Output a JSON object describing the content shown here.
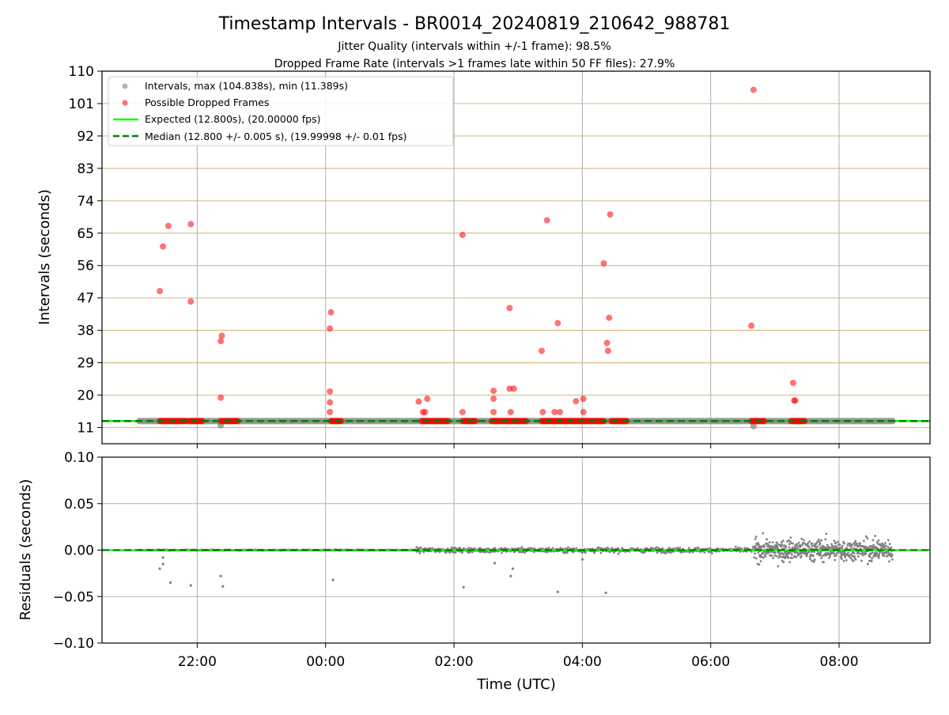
{
  "title": "Timestamp Intervals - BR0014_20240819_210642_988781",
  "subtitle_1": "Jitter Quality (intervals within +/-1 frame): 98.5%",
  "subtitle_2": "Dropped Frame Rate (intervals >1 frames late within 50 FF files): 27.9%",
  "colors": {
    "intervals": "#808080",
    "dropped": "#ff0000",
    "expected": "#00ff00",
    "median": "#008000",
    "top_grid": "#d4c08a",
    "grid": "#b0b0b0"
  },
  "chart_data": [
    {
      "type": "scatter",
      "panel": "intervals",
      "xlabel": "",
      "ylabel": "Intervals (seconds)",
      "ylim": [
        6.5,
        110
      ],
      "yticks": [
        11,
        20,
        29,
        38,
        47,
        56,
        65,
        74,
        83,
        92,
        101,
        110
      ],
      "xlim": [
        "20:31",
        "09:25"
      ],
      "xticks": [
        "22:00",
        "00:00",
        "02:00",
        "04:00",
        "06:00",
        "08:00"
      ],
      "grid": "horizontal lines at y ticks (tan), vertical lines at x ticks (gray)",
      "legend_position": "top-left",
      "legend": [
        "Intervals, max (104.838s), min (11.389s)",
        "Possible Dropped Frames",
        "Expected (12.800s), (20.00000 fps)",
        "Median (12.800 +/- 0.005 s), (19.99998 +/- 0.01 fps)"
      ],
      "expected_interval": 12.8,
      "median_interval": 12.8,
      "interval_time_span": [
        "21:06",
        "08:50"
      ],
      "dropped_cluster_spans": [
        [
          "21:25",
          "21:35"
        ],
        [
          "21:35",
          "21:50"
        ],
        [
          "21:52",
          "22:05"
        ],
        [
          "22:22",
          "22:38"
        ],
        [
          "00:05",
          "00:15"
        ],
        [
          "01:30",
          "01:40"
        ],
        [
          "01:40",
          "01:55"
        ],
        [
          "02:08",
          "02:20"
        ],
        [
          "02:35",
          "02:50"
        ],
        [
          "02:50",
          "03:08"
        ],
        [
          "03:22",
          "03:42"
        ],
        [
          "03:42",
          "04:00"
        ],
        [
          "04:00",
          "04:20"
        ],
        [
          "04:27",
          "04:42"
        ],
        [
          "06:38",
          "06:50"
        ],
        [
          "07:15",
          "07:28"
        ]
      ],
      "dropped_points": [
        {
          "x": "21:25",
          "y": 48.9
        },
        {
          "x": "21:28",
          "y": 61.3
        },
        {
          "x": "21:33",
          "y": 67.0
        },
        {
          "x": "21:54",
          "y": 67.5
        },
        {
          "x": "21:54",
          "y": 46.0
        },
        {
          "x": "22:22",
          "y": 19.3
        },
        {
          "x": "22:22",
          "y": 35.0
        },
        {
          "x": "22:23",
          "y": 36.5
        },
        {
          "x": "00:04",
          "y": 38.5
        },
        {
          "x": "00:05",
          "y": 43.0
        },
        {
          "x": "00:04",
          "y": 21.0
        },
        {
          "x": "00:04",
          "y": 18.0
        },
        {
          "x": "00:04",
          "y": 15.3
        },
        {
          "x": "01:27",
          "y": 18.2
        },
        {
          "x": "01:31",
          "y": 15.3
        },
        {
          "x": "01:33",
          "y": 15.3
        },
        {
          "x": "01:35",
          "y": 19.0
        },
        {
          "x": "02:08",
          "y": 64.5
        },
        {
          "x": "02:08",
          "y": 15.3
        },
        {
          "x": "02:37",
          "y": 21.2
        },
        {
          "x": "02:37",
          "y": 19.0
        },
        {
          "x": "02:37",
          "y": 15.3
        },
        {
          "x": "02:52",
          "y": 44.2
        },
        {
          "x": "02:52",
          "y": 21.8
        },
        {
          "x": "02:56",
          "y": 21.8
        },
        {
          "x": "02:53",
          "y": 15.3
        },
        {
          "x": "03:22",
          "y": 32.3
        },
        {
          "x": "03:23",
          "y": 15.3
        },
        {
          "x": "03:27",
          "y": 68.6
        },
        {
          "x": "03:34",
          "y": 15.3
        },
        {
          "x": "03:37",
          "y": 40.0
        },
        {
          "x": "03:39",
          "y": 15.3
        },
        {
          "x": "03:54",
          "y": 18.3
        },
        {
          "x": "04:01",
          "y": 19.0
        },
        {
          "x": "04:01",
          "y": 15.3
        },
        {
          "x": "04:20",
          "y": 56.6
        },
        {
          "x": "04:23",
          "y": 34.5
        },
        {
          "x": "04:24",
          "y": 32.3
        },
        {
          "x": "04:25",
          "y": 41.5
        },
        {
          "x": "04:26",
          "y": 70.2
        },
        {
          "x": "06:38",
          "y": 39.3
        },
        {
          "x": "06:40",
          "y": 104.8
        },
        {
          "x": "07:17",
          "y": 23.4
        },
        {
          "x": "07:18",
          "y": 18.5
        },
        {
          "x": "07:19",
          "y": 18.5
        }
      ],
      "low_interval_points": [
        {
          "x": "22:22",
          "y": 11.6
        },
        {
          "x": "06:40",
          "y": 11.389
        }
      ]
    },
    {
      "type": "scatter",
      "panel": "residuals",
      "xlabel": "Time (UTC)",
      "ylabel": "Residuals (seconds)",
      "ylim": [
        -0.1,
        0.1
      ],
      "yticks": [
        "−0.10",
        "−0.05",
        "0.00",
        "0.05",
        "0.10"
      ],
      "ytick_values": [
        -0.1,
        -0.05,
        0.0,
        0.05,
        0.1
      ],
      "xlim": [
        "20:31",
        "09:25"
      ],
      "xticks": [
        "22:00",
        "00:00",
        "02:00",
        "04:00",
        "06:00",
        "08:00"
      ],
      "grid": "both",
      "residual_spread_segments": [
        {
          "from": "21:06",
          "to": "01:25",
          "spread": 0.001
        },
        {
          "from": "01:25",
          "to": "06:40",
          "spread": 0.006
        },
        {
          "from": "06:40",
          "to": "08:50",
          "spread": 0.027
        }
      ],
      "outliers": [
        {
          "x": "21:25",
          "y": -0.02
        },
        {
          "x": "21:28",
          "y": -0.015
        },
        {
          "x": "21:28",
          "y": -0.008
        },
        {
          "x": "21:35",
          "y": -0.035
        },
        {
          "x": "21:54",
          "y": -0.038
        },
        {
          "x": "22:22",
          "y": -0.028
        },
        {
          "x": "22:24",
          "y": -0.039
        },
        {
          "x": "00:07",
          "y": -0.032
        },
        {
          "x": "02:09",
          "y": -0.04
        },
        {
          "x": "02:38",
          "y": -0.014
        },
        {
          "x": "02:53",
          "y": -0.028
        },
        {
          "x": "02:55",
          "y": -0.02
        },
        {
          "x": "03:37",
          "y": -0.045
        },
        {
          "x": "04:00",
          "y": -0.01
        },
        {
          "x": "04:22",
          "y": -0.046
        }
      ]
    }
  ]
}
